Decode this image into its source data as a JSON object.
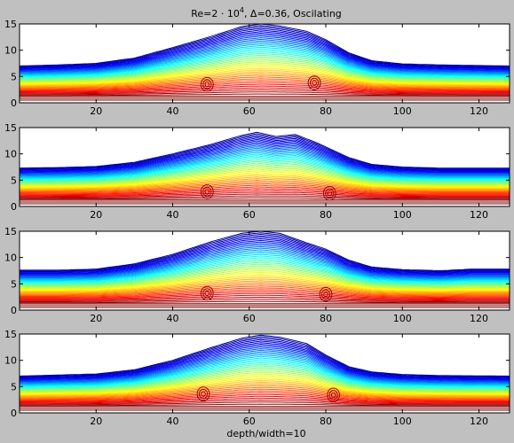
{
  "chart_data": {
    "type": "contour",
    "title": {
      "main": "Re=2 · 10",
      "superscript": "4",
      "suffix": ", Δ=0.36, Oscilating"
    },
    "xlabel": "depth/width=10",
    "ylabel": "",
    "xlim": [
      0,
      128
    ],
    "ylim": [
      0,
      15
    ],
    "xticks": [
      20,
      40,
      60,
      80,
      100,
      120
    ],
    "yticks": [
      0,
      5,
      10,
      15
    ],
    "grid": false,
    "legend": "none",
    "colormap": [
      "#7f0000",
      "#ff0000",
      "#ff8000",
      "#ffff00",
      "#80ff80",
      "#00ffff",
      "#0080ff",
      "#0000ff",
      "#00008f"
    ],
    "panels": [
      {
        "profile_top": [
          [
            0,
            7.0
          ],
          [
            10,
            7.2
          ],
          [
            20,
            7.5
          ],
          [
            30,
            8.5
          ],
          [
            40,
            10.5
          ],
          [
            50,
            12.6
          ],
          [
            58,
            14.5
          ],
          [
            63,
            15.0
          ],
          [
            68,
            14.6
          ],
          [
            75,
            13.6
          ],
          [
            80,
            12.0
          ],
          [
            86,
            9.5
          ],
          [
            92,
            8.0
          ],
          [
            100,
            7.4
          ],
          [
            110,
            7.2
          ],
          [
            128,
            7.0
          ]
        ],
        "vortices": [
          [
            49,
            3.5
          ],
          [
            77,
            3.8
          ]
        ]
      },
      {
        "profile_top": [
          [
            0,
            7.3
          ],
          [
            10,
            7.4
          ],
          [
            20,
            7.6
          ],
          [
            30,
            8.4
          ],
          [
            40,
            10.0
          ],
          [
            50,
            11.8
          ],
          [
            58,
            13.5
          ],
          [
            62,
            14.1
          ],
          [
            67,
            13.3
          ],
          [
            72,
            13.7
          ],
          [
            78,
            12.0
          ],
          [
            86,
            9.3
          ],
          [
            92,
            8.0
          ],
          [
            100,
            7.5
          ],
          [
            110,
            7.3
          ],
          [
            128,
            7.3
          ]
        ],
        "vortices": [
          [
            49,
            2.8
          ],
          [
            81,
            2.5
          ]
        ]
      },
      {
        "profile_top": [
          [
            0,
            7.6
          ],
          [
            10,
            7.6
          ],
          [
            20,
            7.8
          ],
          [
            30,
            8.8
          ],
          [
            40,
            10.6
          ],
          [
            50,
            13.0
          ],
          [
            58,
            14.6
          ],
          [
            63,
            15.0
          ],
          [
            68,
            14.6
          ],
          [
            75,
            12.8
          ],
          [
            80,
            11.6
          ],
          [
            86,
            9.5
          ],
          [
            92,
            8.2
          ],
          [
            100,
            7.7
          ],
          [
            110,
            7.5
          ],
          [
            118,
            7.8
          ],
          [
            128,
            7.8
          ]
        ],
        "vortices": [
          [
            49,
            3.2
          ],
          [
            80,
            3.0
          ]
        ]
      },
      {
        "profile_top": [
          [
            0,
            7.0
          ],
          [
            10,
            7.2
          ],
          [
            20,
            7.4
          ],
          [
            30,
            8.2
          ],
          [
            40,
            10.0
          ],
          [
            50,
            12.4
          ],
          [
            58,
            14.2
          ],
          [
            63,
            14.8
          ],
          [
            68,
            14.4
          ],
          [
            75,
            13.2
          ],
          [
            80,
            11.0
          ],
          [
            86,
            8.8
          ],
          [
            92,
            7.8
          ],
          [
            100,
            7.3
          ],
          [
            110,
            7.1
          ],
          [
            128,
            7.0
          ]
        ],
        "vortices": [
          [
            48,
            3.6
          ],
          [
            82,
            3.4
          ]
        ]
      }
    ]
  }
}
